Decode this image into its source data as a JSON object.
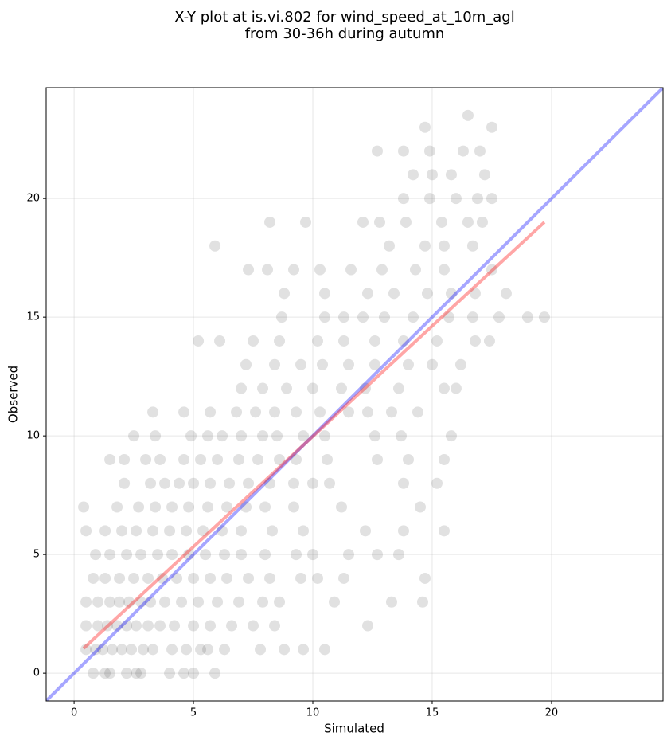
{
  "chart_data": {
    "type": "scatter",
    "title": [
      "X-Y plot at is.vi.802 for wind_speed_at_10m_agl",
      "from 30-36h during autumn"
    ],
    "xlabel": "Simulated",
    "ylabel": "Observed",
    "xlim": [
      -1.17,
      24.67
    ],
    "ylim": [
      -1.17,
      24.67
    ],
    "xticks": [
      0,
      5,
      10,
      15,
      20
    ],
    "yticks": [
      0,
      5,
      10,
      15,
      20
    ],
    "grid": true,
    "color": "#333333",
    "x": [
      0.8,
      1.3,
      1.5,
      2.2,
      2.6,
      2.8,
      4.0,
      4.6,
      5.0,
      5.9,
      0.5,
      0.9,
      1.2,
      1.6,
      2.0,
      2.4,
      2.9,
      3.3,
      4.1,
      4.7,
      5.3,
      5.6,
      6.3,
      7.8,
      8.8,
      9.6,
      10.5,
      0.5,
      1.0,
      1.4,
      1.8,
      2.2,
      2.6,
      3.1,
      3.6,
      4.2,
      5.0,
      5.7,
      6.6,
      7.5,
      8.4,
      12.3,
      0.5,
      1.0,
      1.5,
      1.9,
      2.3,
      2.8,
      3.2,
      3.8,
      4.5,
      5.2,
      6.0,
      6.9,
      7.9,
      8.6,
      10.9,
      13.3,
      14.6,
      0.8,
      1.3,
      1.9,
      2.5,
      3.1,
      3.7,
      4.3,
      5.0,
      5.7,
      6.4,
      7.3,
      8.2,
      9.5,
      10.2,
      11.3,
      14.7,
      0.9,
      1.5,
      2.2,
      2.8,
      3.5,
      4.1,
      4.8,
      5.5,
      6.3,
      7.0,
      8.0,
      9.3,
      10.0,
      11.5,
      12.7,
      13.6,
      0.5,
      1.3,
      2.0,
      2.6,
      3.3,
      4.0,
      4.7,
      5.4,
      6.2,
      7.0,
      8.3,
      9.6,
      12.2,
      13.8,
      15.5,
      0.4,
      1.8,
      2.7,
      3.4,
      4.1,
      4.8,
      5.6,
      6.4,
      7.2,
      8.0,
      9.2,
      11.2,
      14.5,
      2.1,
      3.2,
      3.8,
      4.4,
      5.0,
      5.7,
      6.5,
      7.3,
      8.2,
      9.2,
      10.0,
      10.7,
      13.8,
      15.2,
      1.5,
      2.1,
      3.0,
      3.6,
      4.6,
      5.3,
      6.0,
      6.9,
      7.7,
      8.6,
      9.3,
      10.6,
      12.7,
      14.0,
      15.5,
      2.5,
      3.4,
      4.9,
      5.6,
      6.2,
      7.0,
      7.9,
      8.5,
      9.6,
      10.5,
      12.6,
      13.7,
      15.8,
      3.3,
      4.6,
      5.7,
      6.8,
      7.6,
      8.4,
      9.3,
      10.3,
      11.5,
      12.3,
      13.3,
      14.4,
      7.0,
      7.9,
      8.9,
      10.0,
      11.2,
      12.2,
      13.6,
      15.5,
      16.0,
      7.2,
      8.4,
      9.5,
      10.4,
      11.5,
      12.6,
      14.0,
      15.0,
      16.2,
      5.2,
      6.1,
      7.5,
      8.6,
      10.2,
      11.3,
      12.6,
      13.8,
      15.2,
      16.8,
      17.4,
      8.7,
      10.5,
      11.3,
      12.1,
      13.0,
      14.2,
      15.7,
      16.7,
      17.8,
      19.0,
      19.7,
      8.8,
      10.5,
      12.3,
      13.4,
      14.8,
      15.8,
      16.8,
      18.1,
      7.3,
      8.1,
      9.2,
      10.3,
      11.6,
      12.9,
      14.3,
      15.5,
      17.5,
      5.9,
      13.2,
      14.7,
      15.5,
      16.7,
      8.2,
      9.7,
      12.1,
      12.8,
      13.9,
      15.4,
      16.5,
      17.1,
      13.8,
      14.9,
      16.0,
      16.9,
      17.5,
      14.2,
      15.0,
      15.8,
      17.2,
      12.7,
      13.8,
      14.9,
      16.3,
      17.0,
      14.7,
      17.5,
      16.5
    ],
    "y": [
      0,
      0,
      0,
      0,
      0,
      0,
      0,
      0,
      0,
      0,
      1,
      1,
      1,
      1,
      1,
      1,
      1,
      1,
      1,
      1,
      1,
      1,
      1,
      1,
      1,
      1,
      1,
      2,
      2,
      2,
      2,
      2,
      2,
      2,
      2,
      2,
      2,
      2,
      2,
      2,
      2,
      2,
      3,
      3,
      3,
      3,
      3,
      3,
      3,
      3,
      3,
      3,
      3,
      3,
      3,
      3,
      3,
      3,
      3,
      4,
      4,
      4,
      4,
      4,
      4,
      4,
      4,
      4,
      4,
      4,
      4,
      4,
      4,
      4,
      4,
      5,
      5,
      5,
      5,
      5,
      5,
      5,
      5,
      5,
      5,
      5,
      5,
      5,
      5,
      5,
      5,
      6,
      6,
      6,
      6,
      6,
      6,
      6,
      6,
      6,
      6,
      6,
      6,
      6,
      6,
      6,
      7,
      7,
      7,
      7,
      7,
      7,
      7,
      7,
      7,
      7,
      7,
      7,
      7,
      8,
      8,
      8,
      8,
      8,
      8,
      8,
      8,
      8,
      8,
      8,
      8,
      8,
      8,
      9,
      9,
      9,
      9,
      9,
      9,
      9,
      9,
      9,
      9,
      9,
      9,
      9,
      9,
      9,
      10,
      10,
      10,
      10,
      10,
      10,
      10,
      10,
      10,
      10,
      10,
      10,
      10,
      11,
      11,
      11,
      11,
      11,
      11,
      11,
      11,
      11,
      11,
      11,
      11,
      12,
      12,
      12,
      12,
      12,
      12,
      12,
      12,
      12,
      13,
      13,
      13,
      13,
      13,
      13,
      13,
      13,
      13,
      14,
      14,
      14,
      14,
      14,
      14,
      14,
      14,
      14,
      14,
      14,
      15,
      15,
      15,
      15,
      15,
      15,
      15,
      15,
      15,
      15,
      15,
      16,
      16,
      16,
      16,
      16,
      16,
      16,
      16,
      17,
      17,
      17,
      17,
      17,
      17,
      17,
      17,
      17,
      18,
      18,
      18,
      18,
      18,
      19,
      19,
      19,
      19,
      19,
      19,
      19,
      19,
      20,
      20,
      20,
      20,
      20,
      21,
      21,
      21,
      21,
      22,
      22,
      22,
      22,
      22,
      23,
      23,
      23.5
    ],
    "fit_line": {
      "color": "#ff0000",
      "x": [
        0.4,
        19.7
      ],
      "y": [
        1.05,
        19.0
      ]
    },
    "identity_line": {
      "color": "#0000ff"
    }
  }
}
